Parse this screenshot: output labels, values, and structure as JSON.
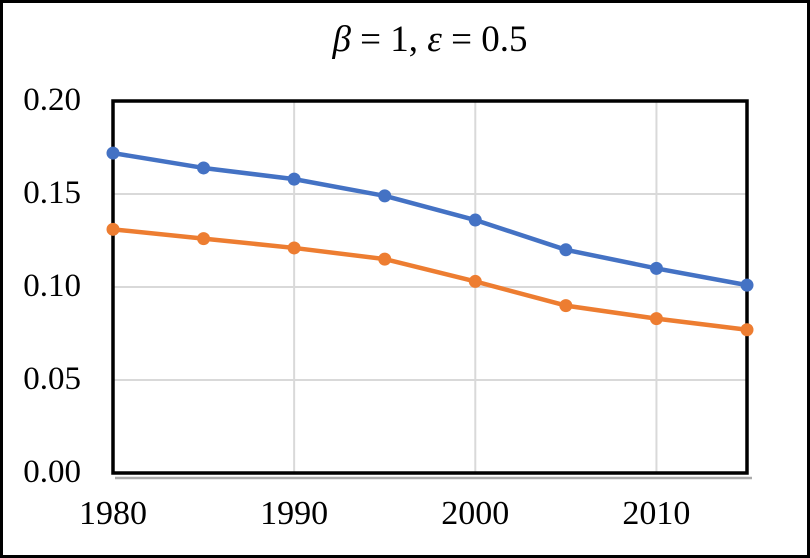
{
  "title": {
    "beta_symbol": "β",
    "beta_value_part": " = 1, ",
    "epsilon_symbol": "ε",
    "epsilon_value_part": " = 0.5",
    "full_text": "β = 1, ε = 0.5"
  },
  "chart_data": {
    "type": "line",
    "title": "β = 1, ε = 0.5",
    "x": [
      1980,
      1985,
      1990,
      1995,
      2000,
      2005,
      2010,
      2015
    ],
    "series": [
      {
        "name": "series-blue",
        "color": "#4472C4",
        "values": [
          0.172,
          0.164,
          0.158,
          0.149,
          0.136,
          0.12,
          0.11,
          0.101
        ]
      },
      {
        "name": "series-orange",
        "color": "#ED7D31",
        "values": [
          0.131,
          0.126,
          0.121,
          0.115,
          0.103,
          0.09,
          0.083,
          0.077
        ]
      }
    ],
    "xlim": [
      1980,
      2015
    ],
    "ylim": [
      0.0,
      0.2
    ],
    "y_ticks": [
      {
        "label": "0.20",
        "value": 0.2
      },
      {
        "label": "0.15",
        "value": 0.15
      },
      {
        "label": "0.10",
        "value": 0.1
      },
      {
        "label": "0.05",
        "value": 0.05
      },
      {
        "label": "0.00",
        "value": 0.0
      }
    ],
    "x_ticks": [
      {
        "label": "1980",
        "year": 1980
      },
      {
        "label": "1990",
        "year": 1990
      },
      {
        "label": "2000",
        "year": 2000
      },
      {
        "label": "2010",
        "year": 2010
      }
    ],
    "grid": {
      "show": true,
      "h_values": [
        0.05,
        0.1,
        0.15
      ],
      "v_years": [
        1990,
        2000,
        2010
      ],
      "color": "#D9D9D9"
    },
    "legend": "none",
    "style": {
      "line_width": 4.5,
      "marker_radius": 6.5,
      "frame_color": "#000000",
      "frame_width": 3.5,
      "shadow_color": "#ABABAB",
      "background": "#FFFFFF"
    }
  }
}
